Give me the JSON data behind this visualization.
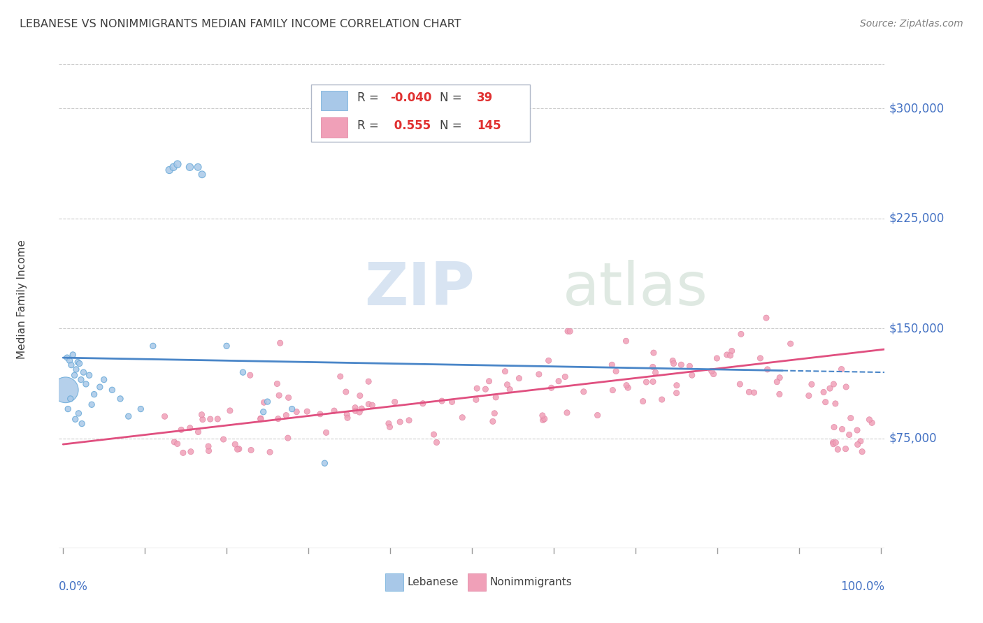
{
  "title": "LEBANESE VS NONIMMIGRANTS MEDIAN FAMILY INCOME CORRELATION CHART",
  "source": "Source: ZipAtlas.com",
  "ylabel": "Median Family Income",
  "yticks": [
    75000,
    150000,
    225000,
    300000
  ],
  "ymin": 0,
  "ymax": 340000,
  "xmin": -0.005,
  "xmax": 1.005,
  "watermark_zip": "ZIP",
  "watermark_atlas": "atlas",
  "blue_color": "#a8c8e8",
  "blue_line_color": "#4a86c8",
  "blue_edge_color": "#6aaad8",
  "pink_color": "#f0a0b8",
  "pink_line_color": "#e05080",
  "pink_edge_color": "#e080a0",
  "grid_color": "#cccccc",
  "title_color": "#404040",
  "label_color": "#4472c4",
  "source_color": "#808080"
}
